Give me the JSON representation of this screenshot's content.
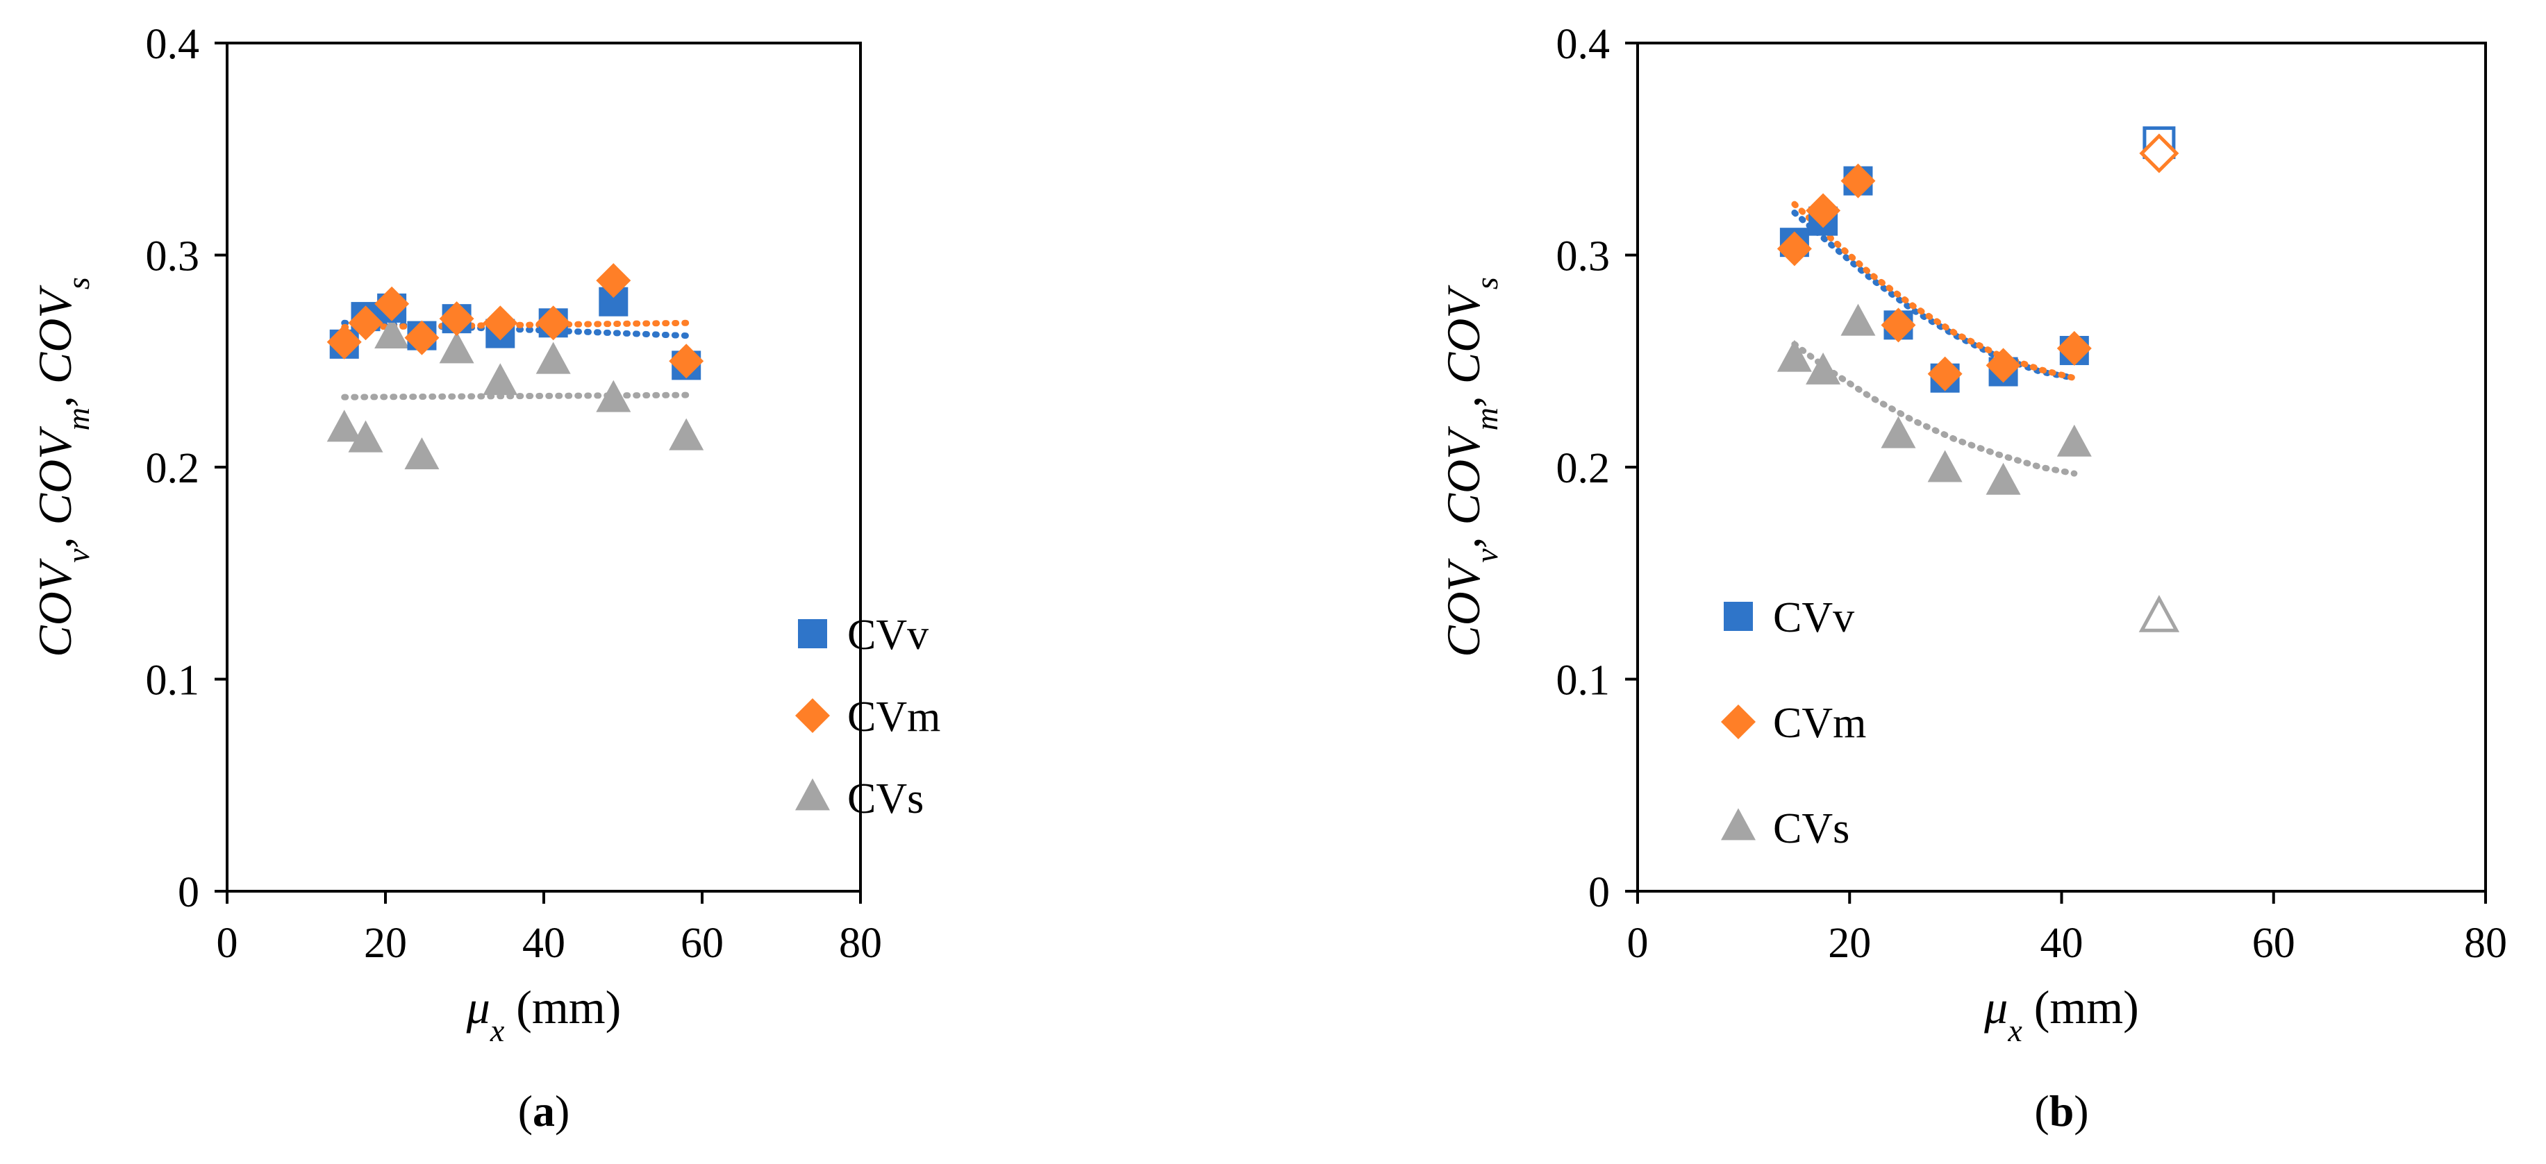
{
  "chart_data": [
    {
      "type": "scatter",
      "panel_label": "a",
      "xlabel": "μx (mm)",
      "ylabel": "COVv, COVm, COVs",
      "xlim": [
        0,
        80
      ],
      "ylim": [
        0,
        0.4
      ],
      "x_ticks": [
        "0",
        "20",
        "40",
        "60",
        "80"
      ],
      "y_ticks": [
        "0",
        "0.1",
        "0.2",
        "0.3",
        "0.4"
      ],
      "legend_position": "bottom-right",
      "series": [
        {
          "name": "CVv",
          "color": "#2f75c9",
          "marker": "square",
          "x": [
            14.8,
            17.5,
            20.8,
            24.6,
            29.0,
            34.5,
            41.2,
            48.8,
            58.0
          ],
          "y": [
            0.258,
            0.271,
            0.275,
            0.262,
            0.27,
            0.263,
            0.268,
            0.278,
            0.248
          ],
          "open_index": []
        },
        {
          "name": "CVm",
          "color": "#ff7f27",
          "marker": "diamond",
          "x": [
            14.8,
            17.5,
            20.8,
            24.6,
            29.0,
            34.5,
            41.2,
            48.8,
            58.0
          ],
          "y": [
            0.259,
            0.268,
            0.277,
            0.261,
            0.27,
            0.268,
            0.268,
            0.288,
            0.25
          ],
          "open_index": []
        },
        {
          "name": "CVs",
          "color": "#a5a5a5",
          "marker": "triangle",
          "x": [
            14.8,
            17.5,
            20.8,
            24.6,
            29.0,
            34.5,
            41.2,
            48.8,
            58.0
          ],
          "y": [
            0.218,
            0.213,
            0.262,
            0.205,
            0.255,
            0.24,
            0.25,
            0.232,
            0.214
          ],
          "open_index": []
        }
      ],
      "trendlines": [
        {
          "series": "CVv",
          "color": "#2f75c9",
          "x": [
            14.8,
            58.0
          ],
          "y": [
            0.268,
            0.262
          ]
        },
        {
          "series": "CVm",
          "color": "#ff7f27",
          "x": [
            14.8,
            58.0
          ],
          "y": [
            0.266,
            0.268
          ]
        },
        {
          "series": "CVs",
          "color": "#a5a5a5",
          "x": [
            14.8,
            58.0
          ],
          "y": [
            0.233,
            0.234
          ]
        }
      ]
    },
    {
      "type": "scatter",
      "panel_label": "b",
      "xlabel": "μx (mm)",
      "ylabel": "COVv, COVm, COVs",
      "xlim": [
        0,
        80
      ],
      "ylim": [
        0,
        0.4
      ],
      "x_ticks": [
        "0",
        "20",
        "40",
        "60",
        "80"
      ],
      "y_ticks": [
        "0",
        "0.1",
        "0.2",
        "0.3",
        "0.4"
      ],
      "legend_position": "bottom-left",
      "series": [
        {
          "name": "CVv",
          "color": "#2f75c9",
          "marker": "square",
          "x": [
            14.8,
            17.5,
            20.8,
            24.6,
            29.0,
            34.5,
            41.2,
            49.2
          ],
          "y": [
            0.306,
            0.316,
            0.335,
            0.267,
            0.242,
            0.245,
            0.255,
            0.353
          ],
          "open_index": [
            7
          ]
        },
        {
          "name": "CVm",
          "color": "#ff7f27",
          "marker": "diamond",
          "x": [
            14.8,
            17.5,
            20.8,
            24.6,
            29.0,
            34.5,
            41.2,
            49.2
          ],
          "y": [
            0.303,
            0.321,
            0.335,
            0.267,
            0.244,
            0.248,
            0.256,
            0.348
          ],
          "open_index": [
            7
          ]
        },
        {
          "name": "CVs",
          "color": "#a5a5a5",
          "marker": "triangle",
          "x": [
            14.8,
            17.5,
            20.8,
            24.6,
            29.0,
            34.5,
            41.2,
            49.2
          ],
          "y": [
            0.251,
            0.245,
            0.268,
            0.215,
            0.199,
            0.193,
            0.211,
            0.129
          ],
          "open_index": [
            7
          ]
        }
      ],
      "trendlines": [
        {
          "series": "CVv",
          "color": "#2f75c9",
          "x": [
            14.8,
            18,
            22,
            26,
            30,
            34,
            38,
            41.2
          ],
          "y": [
            0.32,
            0.306,
            0.289,
            0.274,
            0.262,
            0.252,
            0.245,
            0.242
          ]
        },
        {
          "series": "CVm",
          "color": "#ff7f27",
          "x": [
            14.8,
            18,
            22,
            26,
            30,
            34,
            38,
            41.2
          ],
          "y": [
            0.324,
            0.309,
            0.291,
            0.276,
            0.263,
            0.253,
            0.246,
            0.242
          ]
        },
        {
          "series": "CVs",
          "color": "#a5a5a5",
          "x": [
            14.8,
            18,
            22,
            26,
            30,
            34,
            38,
            41.2
          ],
          "y": [
            0.258,
            0.246,
            0.233,
            0.222,
            0.213,
            0.206,
            0.2,
            0.197
          ]
        }
      ]
    }
  ]
}
